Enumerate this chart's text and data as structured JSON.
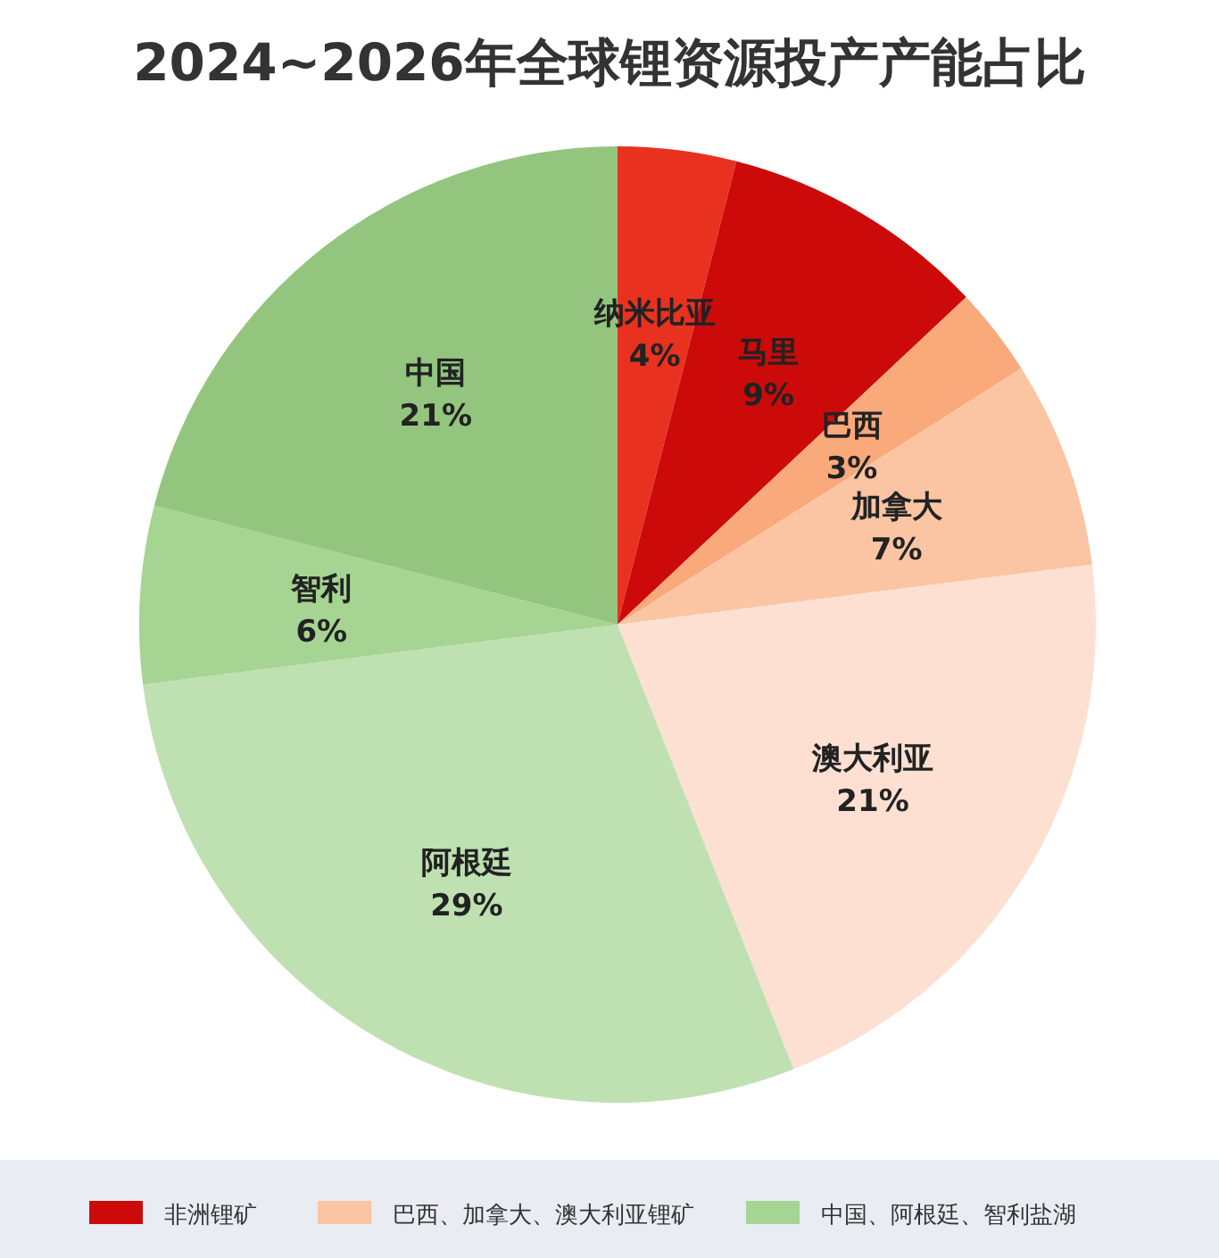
{
  "chart_data": {
    "type": "pie",
    "title": "2024~2026年全球锂资源投产产能占比",
    "categories": [
      "纳米比亚",
      "马里",
      "巴西",
      "加拿大",
      "澳大利亚",
      "阿根廷",
      "智利",
      "中国"
    ],
    "values": [
      4,
      9,
      3,
      7,
      21,
      29,
      6,
      21
    ],
    "value_labels": [
      "4%",
      "9%",
      "3%",
      "7%",
      "21%",
      "29%",
      "6%",
      "21%"
    ],
    "colors": [
      "#e8321f",
      "#cc0a0a",
      "#f9a97a",
      "#fbc4a2",
      "#fde0d2",
      "#bfe0b1",
      "#a6d492",
      "#93c57f"
    ],
    "annotations": [
      "非洲锂矿",
      "巴西、加拿大、澳大利亚锂矿",
      "中国、阿根廷、智利盐湖"
    ]
  }
}
